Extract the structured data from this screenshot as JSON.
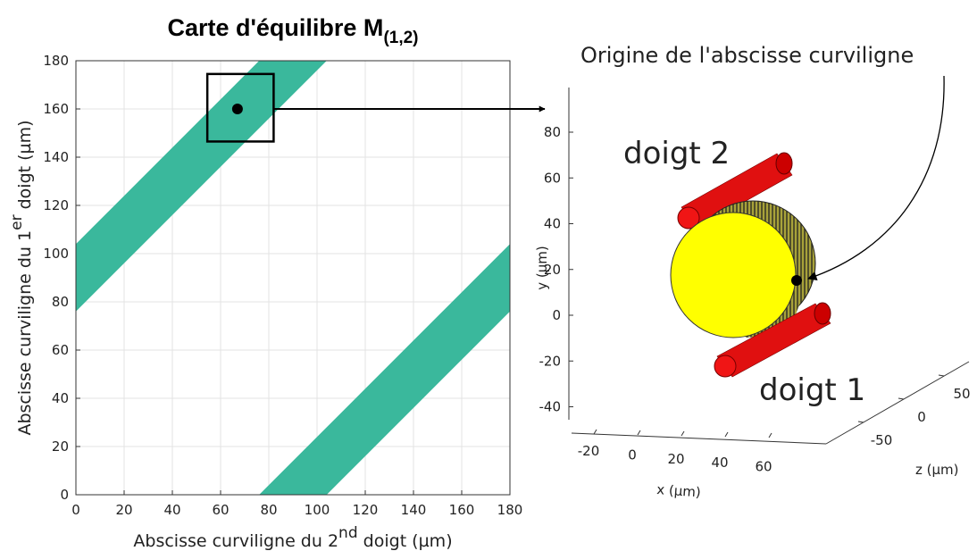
{
  "chart_data": [
    {
      "type": "region",
      "title": "Carte d'équilibre M",
      "title_subscript": "(1,2)",
      "xlabel": [
        "Abscisse curviligne du 2",
        "nd",
        " doigt (µm)"
      ],
      "ylabel": [
        "Abscisse curviligne du 1",
        "er",
        " doigt (µm)"
      ],
      "xlim": [
        0,
        180
      ],
      "ylim": [
        0,
        180
      ],
      "xticks": [
        0,
        20,
        40,
        60,
        80,
        100,
        120,
        140,
        160,
        180
      ],
      "yticks": [
        0,
        20,
        40,
        60,
        80,
        100,
        120,
        140,
        160,
        180
      ],
      "grid": true,
      "color": "#3ab89c",
      "regions": [
        {
          "x": [
            0,
            0,
            76,
            104
          ],
          "y": [
            76,
            104,
            180,
            180
          ]
        },
        {
          "x": [
            76,
            104,
            180,
            180
          ],
          "y": [
            0,
            0,
            76,
            104
          ]
        }
      ],
      "point": {
        "x": 67,
        "y": 160
      },
      "box": {
        "x": [
          54.5,
          82
        ],
        "y": [
          146.5,
          174.5
        ]
      }
    },
    {
      "type": "3d",
      "xlabel": "x (μm)",
      "ylabel": "y (μm)",
      "zlabel": "z (μm)",
      "xticks": [
        -20,
        0,
        20,
        40,
        60
      ],
      "yticks": [
        -40,
        -20,
        0,
        20,
        40,
        60,
        80
      ],
      "zticks": [
        -50,
        0,
        50
      ],
      "annotations": [
        "doigt 2",
        "doigt 1",
        "Origine de l'abscisse curviligne"
      ]
    }
  ]
}
